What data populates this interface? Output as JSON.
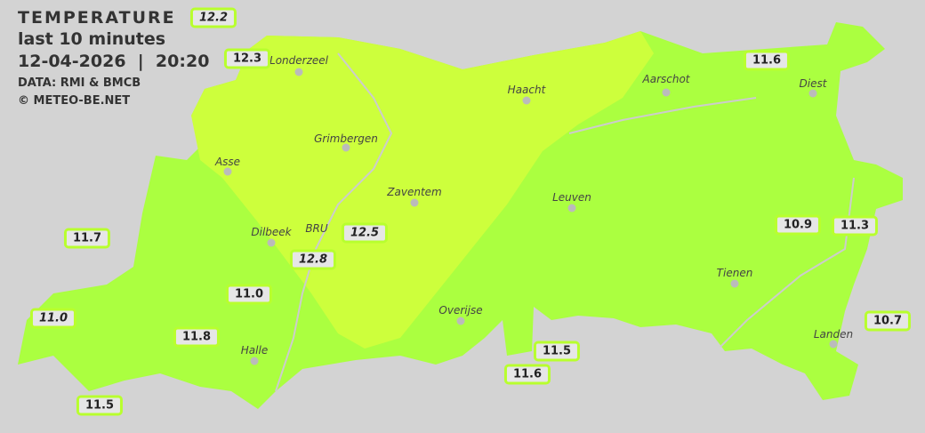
{
  "header": {
    "title": "TEMPERATURE",
    "subtitle": "last 10 minutes",
    "datetime": "12-04-2026  |  20:20",
    "data_source": "DATA: RMI & BMCB",
    "copyright": "© METEO-BE.NET"
  },
  "colors": {
    "background": "#d3d3d3",
    "zone_warm": "#cdff3c",
    "zone_mild": "#abff40",
    "label_border": "#b8ff2e"
  },
  "cities": [
    "Londerzeel",
    "Haacht",
    "Aarschot",
    "Diest",
    "Grimbergen",
    "Asse",
    "Zaventem",
    "Leuven",
    "Dilbeek",
    "BRU",
    "Tienen",
    "Overijse",
    "Halle",
    "Landen"
  ],
  "stations": [
    "12.2",
    "12.3",
    "11.6",
    "11.7",
    "12.5",
    "12.8",
    "10.9",
    "11.3",
    "11.0",
    "11.0",
    "10.7",
    "11.8",
    "11.5",
    "11.6",
    "11.5"
  ]
}
